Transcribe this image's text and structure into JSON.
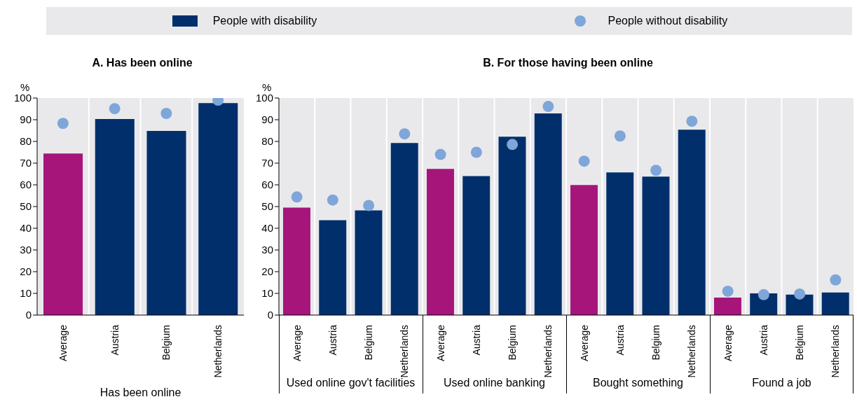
{
  "chart_data": [
    {
      "type": "bar",
      "title": "A. Has been online",
      "ylabel": "%",
      "xlabel": "Has been online",
      "categories": [
        "Average",
        "Austria",
        "Belgium",
        "Netherlands"
      ],
      "ylim": [
        0,
        100
      ],
      "yticks": [
        0,
        10,
        20,
        30,
        40,
        50,
        60,
        70,
        80,
        90,
        100
      ],
      "grid": "x",
      "legend": "top",
      "series": [
        {
          "name": "People with disability",
          "color": "#002f6c",
          "colors": [
            "#a6157a",
            "#002f6c",
            "#002f6c",
            "#002f6c"
          ],
          "values": [
            74.4,
            90.3,
            84.8,
            97.7
          ]
        },
        {
          "type": "scatter",
          "name": "People without disability",
          "color": "#7fa6d9",
          "marker": "circle",
          "values": [
            88.3,
            95.1,
            92.9,
            99
          ]
        }
      ]
    },
    {
      "type": "bar",
      "title": "B. For those having been online",
      "ylabel": "%",
      "categories": [
        "Average",
        "Austria",
        "Belgium",
        "Netherlands",
        "Average",
        "Austria",
        "Belgium",
        "Netherlands",
        "Average",
        "Austria",
        "Belgium",
        "Netherlands",
        "Average",
        "Austria",
        "Belgium",
        "Netherlands"
      ],
      "ylim": [
        0,
        100
      ],
      "yticks": [
        0,
        10,
        20,
        30,
        40,
        50,
        60,
        70,
        80,
        90,
        100
      ],
      "grid": "x",
      "annotations": [
        "Used online gov't facilities",
        "Used online banking",
        "Bought something",
        "Found a job"
      ],
      "series": [
        {
          "color": "#002f6c",
          "colors": [
            "#a6157a",
            "#002f6c",
            "#002f6c",
            "#002f6c",
            "#a6157a",
            "#002f6c",
            "#002f6c",
            "#002f6c",
            "#a6157a",
            "#002f6c",
            "#002f6c",
            "#002f6c",
            "#a6157a",
            "#002f6c",
            "#002f6c",
            "#002f6c"
          ],
          "values": [
            49.5,
            43.7,
            48.2,
            79.3,
            67.3,
            64,
            82.2,
            92.9,
            59.9,
            65.7,
            63.8,
            85.4,
            8.1,
            10,
            9.4,
            10.4
          ]
        },
        {
          "type": "scatter",
          "color": "#7fa6d9",
          "marker": "circle",
          "values": [
            54.4,
            53,
            50.5,
            83.5,
            74,
            75,
            78.6,
            96.1,
            70.9,
            82.5,
            66.7,
            89.3,
            11,
            9.4,
            9.7,
            16.2
          ]
        }
      ]
    }
  ]
}
